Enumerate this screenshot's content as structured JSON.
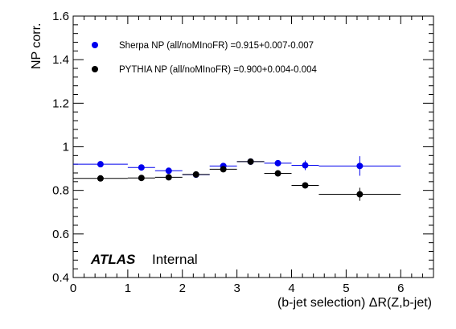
{
  "chart_data": {
    "type": "scatter",
    "xlabel": "(b-jet selection) ΔR(Z,b-jet)",
    "ylabel": "NP corr.",
    "xlim": [
      0,
      6.6
    ],
    "ylim": [
      0.4,
      1.6
    ],
    "x_ticks": [
      0,
      1,
      2,
      3,
      4,
      5,
      6
    ],
    "y_ticks": [
      0.4,
      0.6,
      0.8,
      1,
      1.2,
      1.4,
      1.6
    ],
    "x_tick_labels": [
      "0",
      "1",
      "2",
      "3",
      "4",
      "5",
      "6"
    ],
    "y_tick_labels": [
      "0.4",
      "0.6",
      "0.8",
      "1",
      "1.2",
      "1.4",
      "1.6"
    ],
    "legend_position": "top-left",
    "series": [
      {
        "name": "Sherpa NP (all/noMInoFR) =0.915+0.007-0.007",
        "color": "#0000ee",
        "points": [
          {
            "x": 0.5,
            "y": 0.92,
            "xlo": 0.0,
            "xhi": 1.0,
            "yerr": 0.012
          },
          {
            "x": 1.25,
            "y": 0.905,
            "xlo": 1.0,
            "xhi": 1.5,
            "yerr": 0.01
          },
          {
            "x": 1.75,
            "y": 0.89,
            "xlo": 1.5,
            "xhi": 2.0,
            "yerr": 0.01
          },
          {
            "x": 2.25,
            "y": 0.872,
            "xlo": 2.0,
            "xhi": 2.5,
            "yerr": 0.01
          },
          {
            "x": 2.75,
            "y": 0.912,
            "xlo": 2.5,
            "xhi": 3.0,
            "yerr": 0.01
          },
          {
            "x": 3.25,
            "y": 0.932,
            "xlo": 3.0,
            "xhi": 3.5,
            "yerr": 0.01
          },
          {
            "x": 3.75,
            "y": 0.925,
            "xlo": 3.5,
            "xhi": 4.0,
            "yerr": 0.01
          },
          {
            "x": 4.25,
            "y": 0.915,
            "xlo": 4.0,
            "xhi": 4.5,
            "yerr": 0.022
          },
          {
            "x": 5.25,
            "y": 0.912,
            "xlo": 4.5,
            "xhi": 6.0,
            "yerr": 0.045
          }
        ]
      },
      {
        "name": "PYTHIA NP (all/noMInoFR) =0.900+0.004-0.004",
        "color": "#000000",
        "points": [
          {
            "x": 0.5,
            "y": 0.855,
            "xlo": 0.0,
            "xhi": 1.0,
            "yerr": 0.008
          },
          {
            "x": 1.25,
            "y": 0.857,
            "xlo": 1.0,
            "xhi": 1.5,
            "yerr": 0.008
          },
          {
            "x": 1.75,
            "y": 0.86,
            "xlo": 1.5,
            "xhi": 2.0,
            "yerr": 0.008
          },
          {
            "x": 2.25,
            "y": 0.873,
            "xlo": 2.0,
            "xhi": 2.5,
            "yerr": 0.008
          },
          {
            "x": 2.75,
            "y": 0.897,
            "xlo": 2.5,
            "xhi": 3.0,
            "yerr": 0.008
          },
          {
            "x": 3.25,
            "y": 0.932,
            "xlo": 3.0,
            "xhi": 3.5,
            "yerr": 0.008
          },
          {
            "x": 3.75,
            "y": 0.878,
            "xlo": 3.5,
            "xhi": 4.0,
            "yerr": 0.008
          },
          {
            "x": 4.25,
            "y": 0.823,
            "xlo": 4.0,
            "xhi": 4.5,
            "yerr": 0.008
          },
          {
            "x": 5.25,
            "y": 0.782,
            "xlo": 4.5,
            "xhi": 6.0,
            "yerr": 0.03
          }
        ]
      }
    ],
    "annotation": {
      "bold": "ATLAS",
      "text": "Internal"
    }
  }
}
